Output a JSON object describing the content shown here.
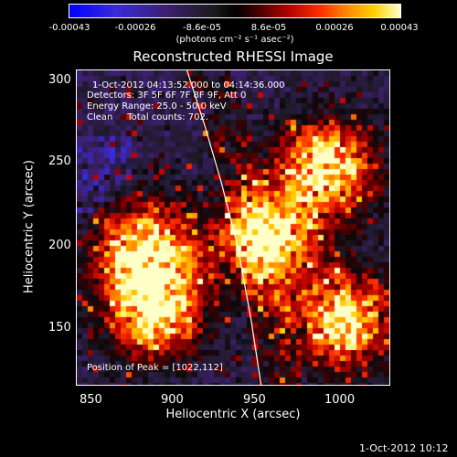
{
  "colorbar": {
    "ticks": [
      "-0.00043",
      "-0.00026",
      "-8.6e-05",
      "8.6e-05",
      "0.00026",
      "0.00043"
    ],
    "units": "(photons cm⁻² s⁻¹ asec⁻²)"
  },
  "title": "Reconstructed RHESSI Image",
  "info": {
    "time_range": "1-Oct-2012 04:13:52.000 to 04:14:36.000",
    "detectors": "Detectors: 3F 5F 6F 7F 8F 9F, Att 0",
    "energy": "Energy Range: 25.0 - 50.0 keV",
    "method": "Clean     Total counts: 702.",
    "peak": "Position of Peak = [1022,112]"
  },
  "axes": {
    "xlabel": "Heliocentric X (arcsec)",
    "ylabel": "Heliocentric Y (arcsec)",
    "xticks": [
      "850",
      "900",
      "950",
      "1000"
    ],
    "yticks": [
      "300",
      "250",
      "200",
      "150"
    ]
  },
  "timestamp": "1-Oct-2012 10:12",
  "chart_data": {
    "type": "heatmap",
    "title": "Reconstructed RHESSI Image",
    "xlabel": "Heliocentric X (arcsec)",
    "ylabel": "Heliocentric Y (arcsec)",
    "xlim": [
      838,
      1028
    ],
    "ylim": [
      110,
      305
    ],
    "colorbar_range": [
      -0.00043,
      0.00043
    ],
    "limb_curve_x": [
      905,
      916,
      926,
      936,
      944,
      950
    ],
    "limb_curve_y": [
      305,
      270,
      235,
      195,
      150,
      110
    ],
    "hot_spots": [
      {
        "x": 1000,
        "y": 150
      },
      {
        "x": 990,
        "y": 245
      },
      {
        "x": 880,
        "y": 195
      },
      {
        "x": 955,
        "y": 200
      },
      {
        "x": 885,
        "y": 155
      }
    ],
    "peak": [
      1022,
      112
    ]
  }
}
